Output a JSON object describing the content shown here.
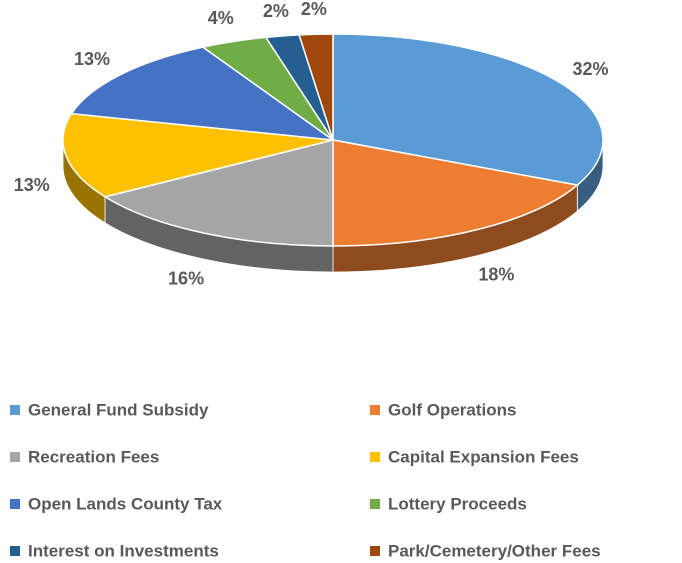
{
  "chart_data": {
    "type": "pie",
    "categories": [
      "General Fund Subsidy",
      "Golf Operations",
      "Recreation Fees",
      "Capital Expansion Fees",
      "Open Lands County Tax",
      "Lottery Proceeds",
      "Interest on Investments",
      "Park/Cemetery/Other Fees"
    ],
    "values": [
      32,
      18,
      16,
      13,
      13,
      4,
      2,
      2
    ],
    "value_labels": [
      "32%",
      "18%",
      "16%",
      "13%",
      "13%",
      "4%",
      "2%",
      "2%"
    ],
    "colors": [
      "#5b9bd5",
      "#ed7d31",
      "#a5a5a5",
      "#ffc000",
      "#4472c4",
      "#70ad47",
      "#255e91",
      "#9e480e"
    ],
    "legend": "bottom"
  }
}
